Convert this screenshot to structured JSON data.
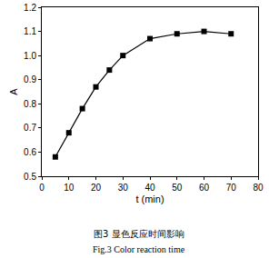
{
  "chart_data": {
    "type": "line",
    "title": "图3 显色反应时间影响",
    "subtitle": "Fig.3 Color reaction time",
    "x_label": "t (min)",
    "y_label": "A",
    "x": [
      5,
      10,
      15,
      20,
      25,
      30,
      40,
      50,
      60,
      70
    ],
    "values": [
      0.58,
      0.68,
      0.78,
      0.87,
      0.94,
      1.0,
      1.07,
      1.09,
      1.1,
      1.09
    ],
    "color": "#000000",
    "marker": "square",
    "line_style": "solid",
    "xlim": [
      0,
      80
    ],
    "xticks": [
      0,
      10,
      20,
      30,
      40,
      50,
      60,
      70,
      80
    ],
    "ylim": [
      0.5,
      1.2
    ],
    "yticks": [
      0.5,
      0.6,
      0.7,
      0.8,
      0.9,
      {
        "value": 1.0,
        "label": "1.0"
      },
      1.1,
      1.2
    ],
    "grid": false
  }
}
